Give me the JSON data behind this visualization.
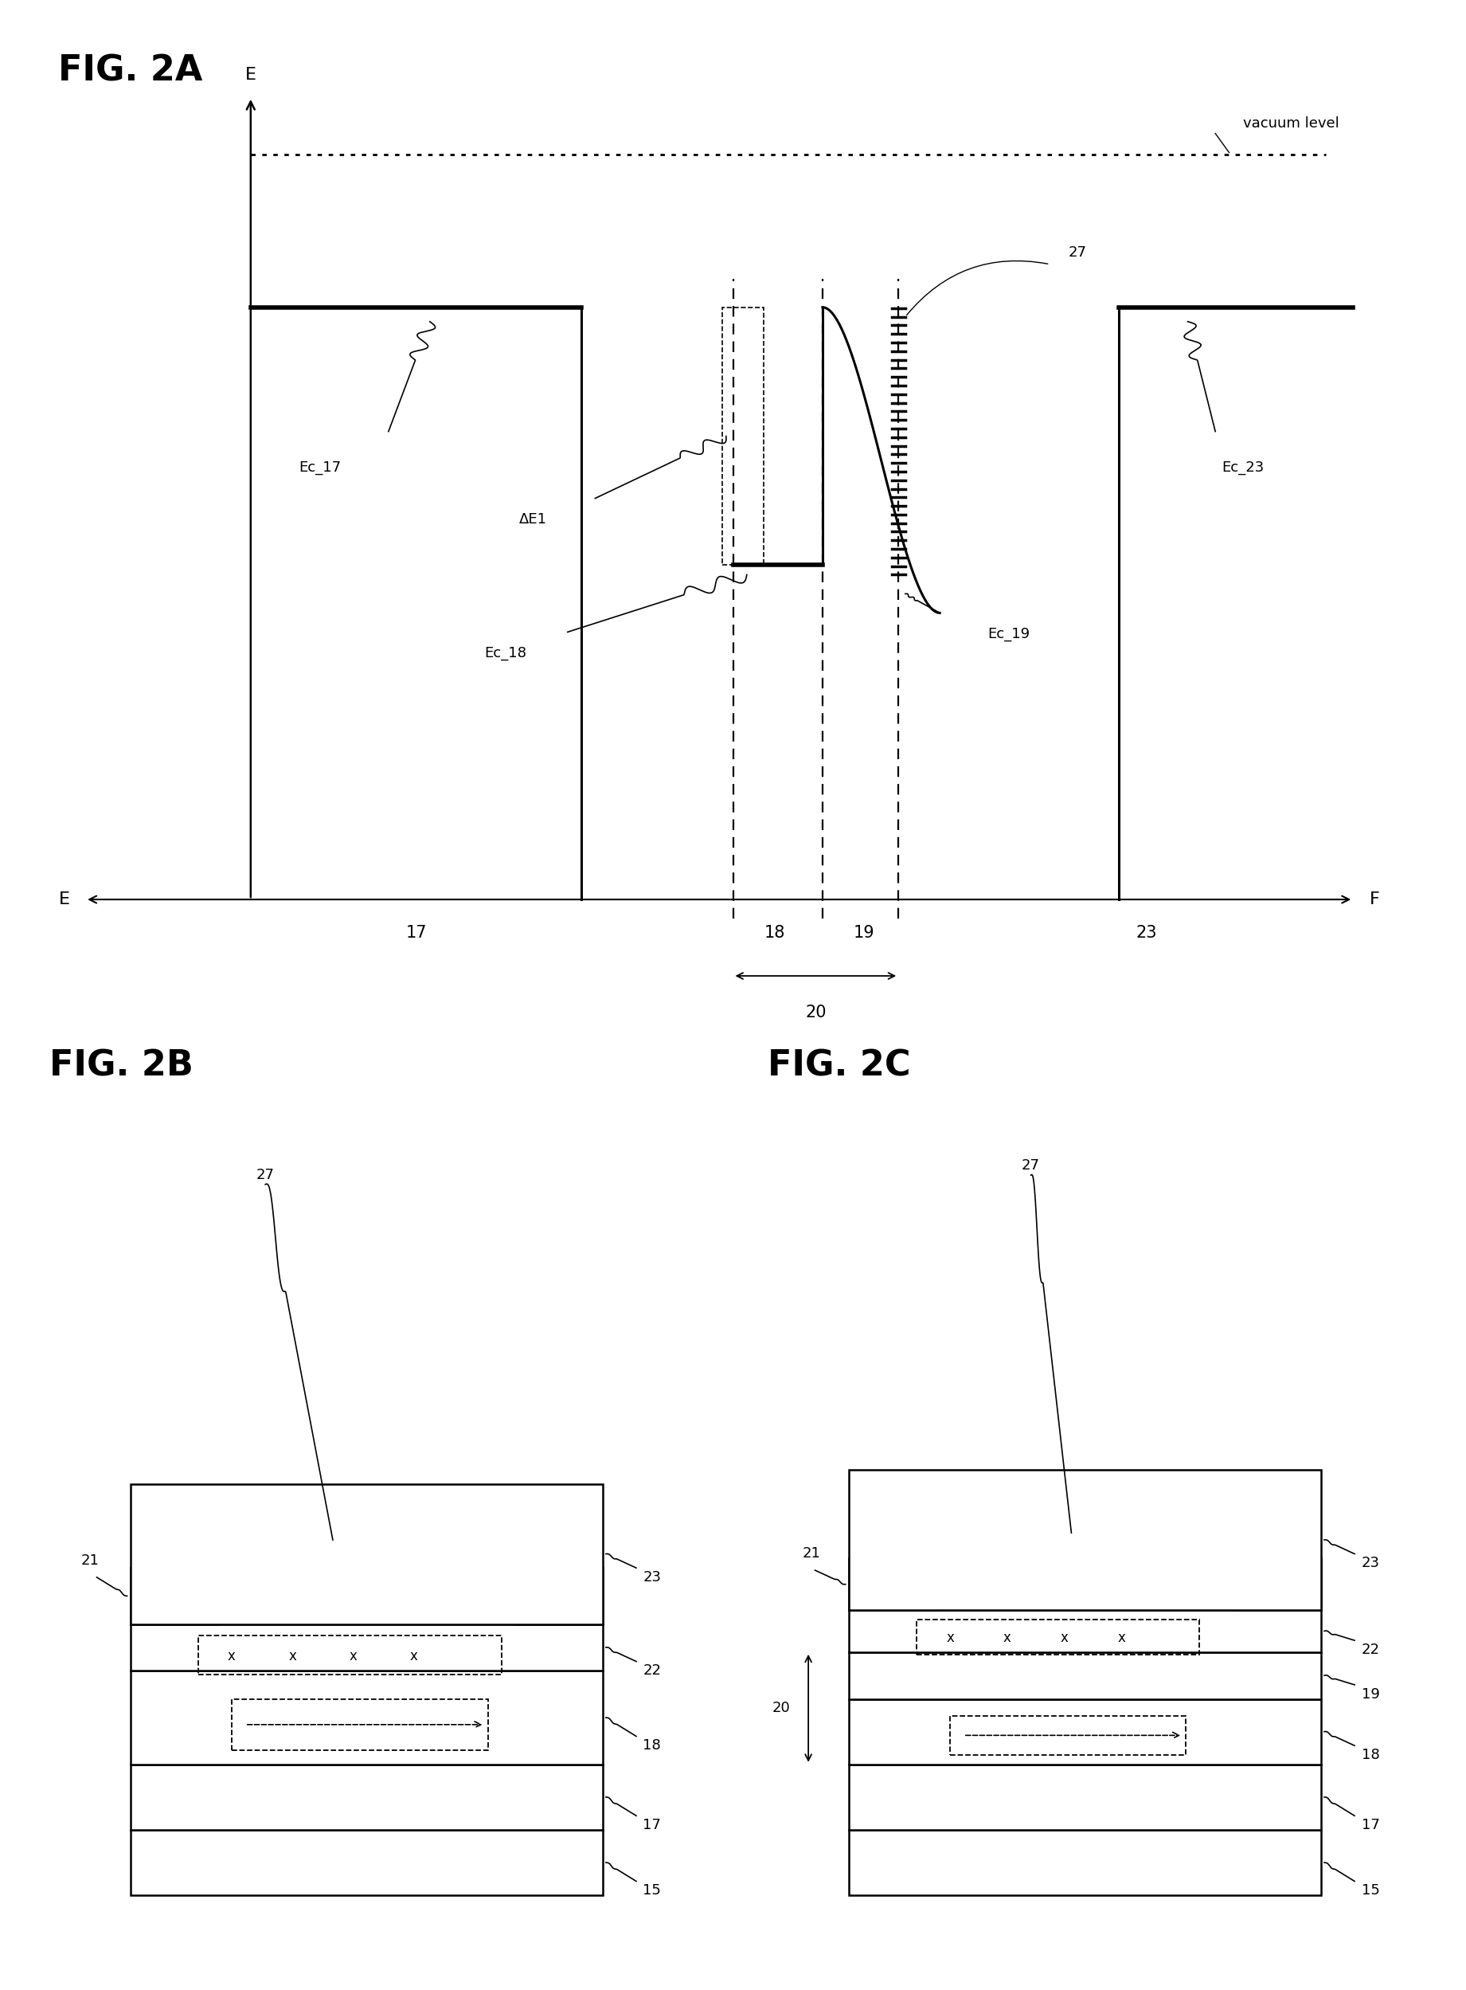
{
  "fig_title_2A": "FIG. 2A",
  "fig_title_2B": "FIG. 2B",
  "fig_title_2C": "FIG. 2C",
  "bg_color": "#ffffff",
  "font_size_title": 32,
  "font_size_label": 16,
  "font_size_num": 15
}
